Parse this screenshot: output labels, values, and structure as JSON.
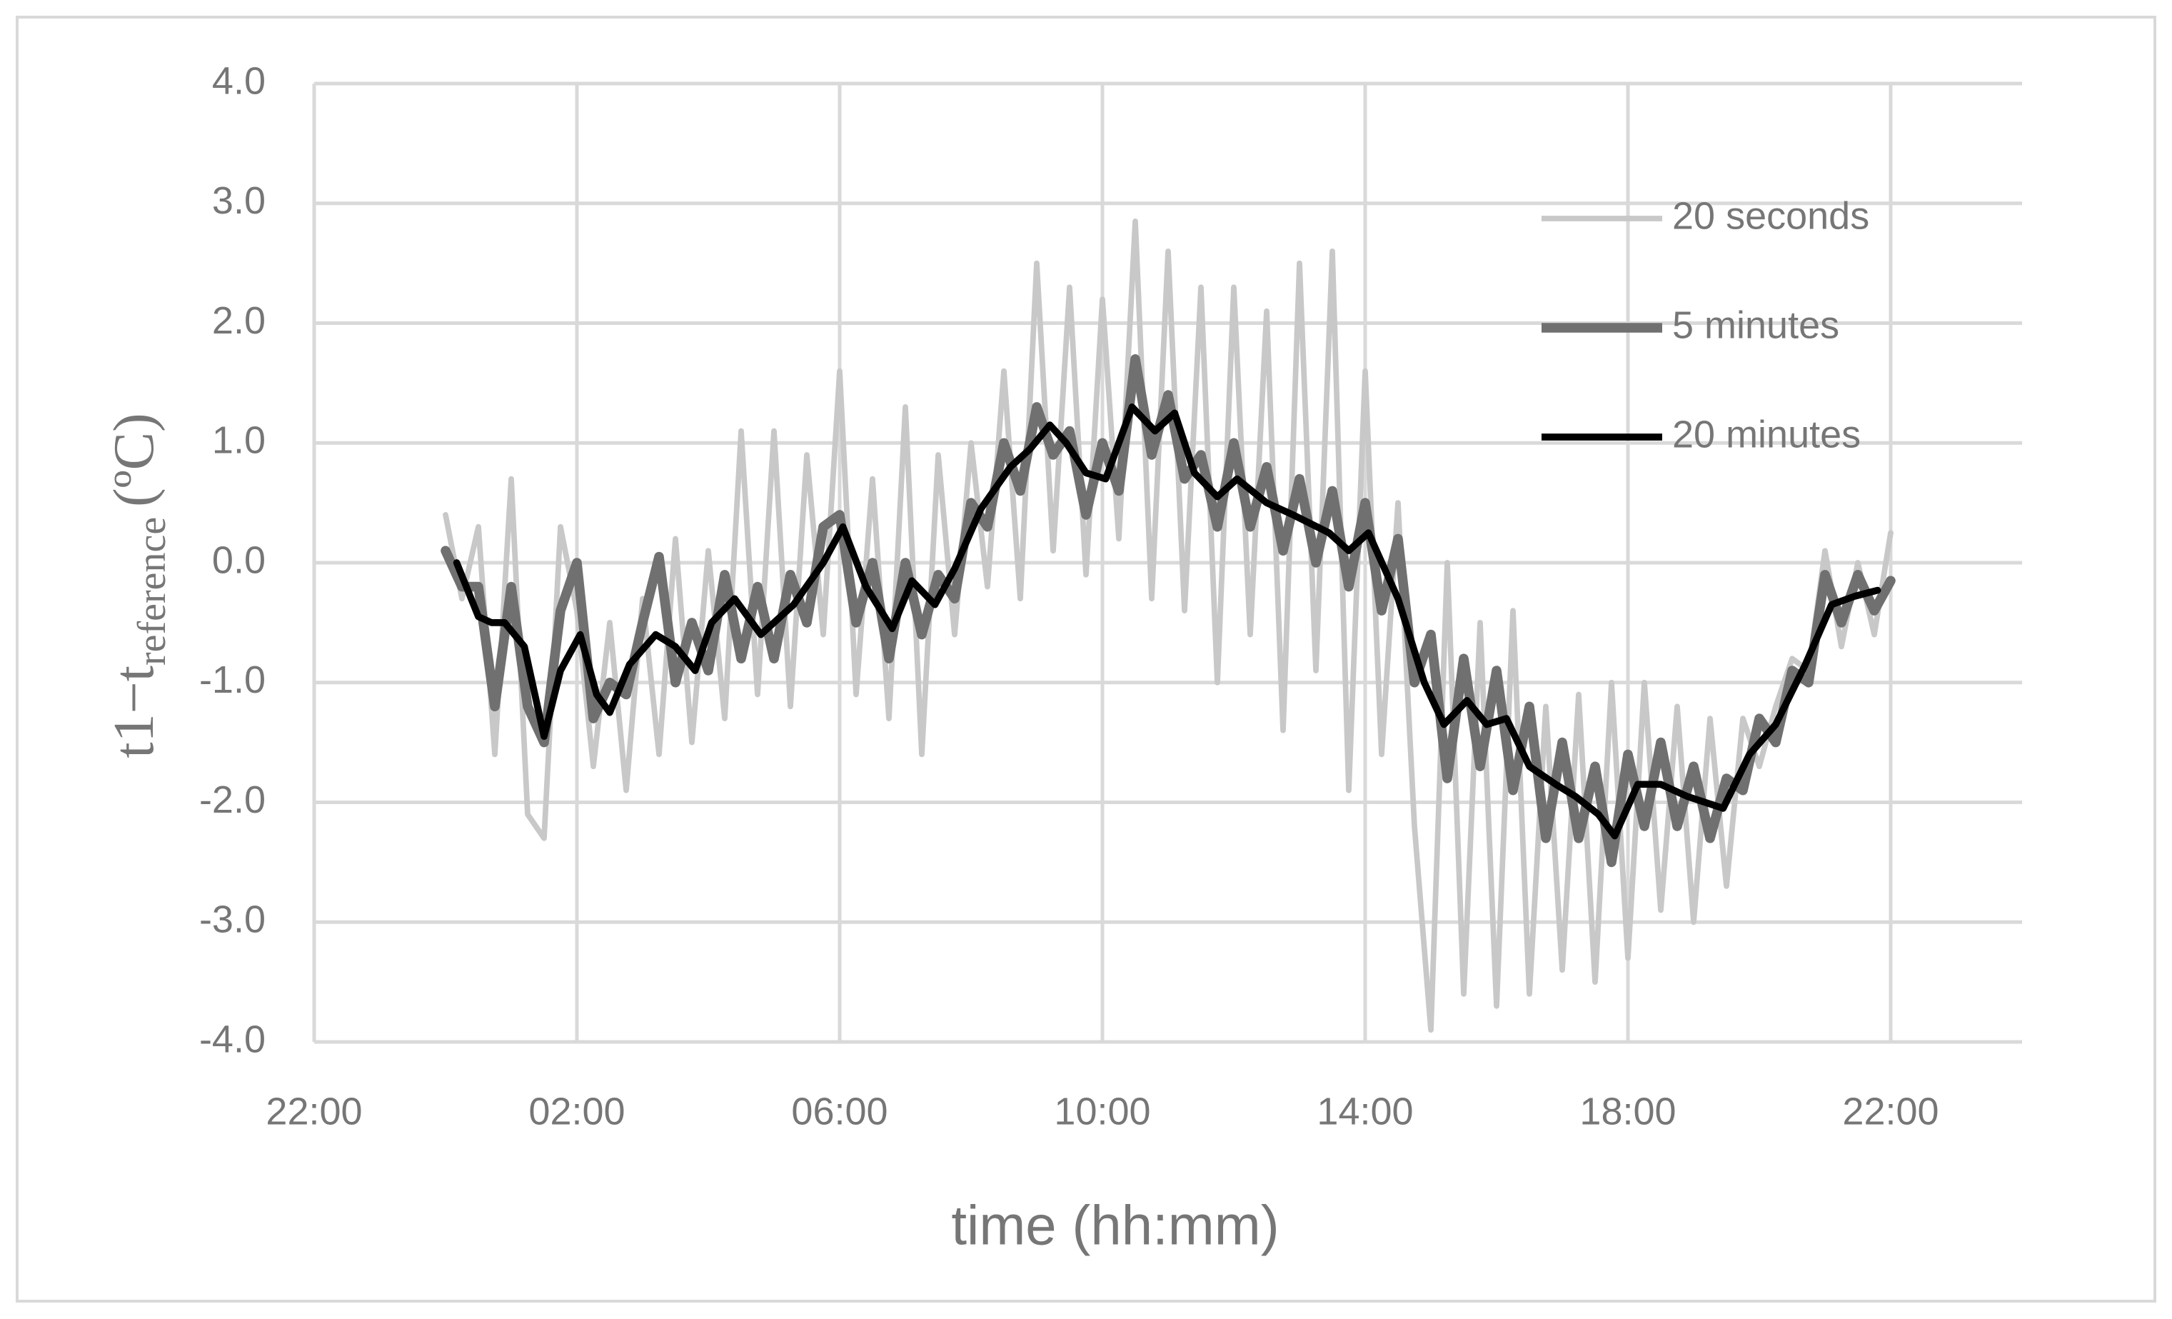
{
  "chart_data": {
    "type": "line",
    "xlabel": "time (hh:mm)",
    "ylabel": "t1−t",
    "ylabel_subscript": "reference",
    "ylabel_suffix": "(ºC)",
    "xlim": [
      -2,
      24
    ],
    "ylim": [
      -4,
      4
    ],
    "xticks": [
      {
        "value": -2,
        "label": "22:00"
      },
      {
        "value": 2,
        "label": "02:00"
      },
      {
        "value": 6,
        "label": "06:00"
      },
      {
        "value": 10,
        "label": "10:00"
      },
      {
        "value": 14,
        "label": "14:00"
      },
      {
        "value": 18,
        "label": "18:00"
      },
      {
        "value": 22,
        "label": "22:00"
      }
    ],
    "yticks": [
      {
        "value": 4,
        "label": "4.0"
      },
      {
        "value": 3,
        "label": "3.0"
      },
      {
        "value": 2,
        "label": "2.0"
      },
      {
        "value": 1,
        "label": "1.0"
      },
      {
        "value": 0,
        "label": "0.0"
      },
      {
        "value": -1,
        "label": "-1.0"
      },
      {
        "value": -2,
        "label": "-2.0"
      },
      {
        "value": -3,
        "label": "-3.0"
      },
      {
        "value": -4,
        "label": "-4.0"
      }
    ],
    "grid": true,
    "legend": "upper right",
    "x": [
      0,
      0.25,
      0.5,
      0.75,
      1,
      1.25,
      1.5,
      1.75,
      2,
      2.25,
      2.5,
      2.75,
      3,
      3.25,
      3.5,
      3.75,
      4,
      4.25,
      4.5,
      4.75,
      5,
      5.25,
      5.5,
      5.75,
      6,
      6.25,
      6.5,
      6.75,
      7,
      7.25,
      7.5,
      7.75,
      8,
      8.25,
      8.5,
      8.75,
      9,
      9.25,
      9.5,
      9.75,
      10,
      10.25,
      10.5,
      10.75,
      11,
      11.25,
      11.5,
      11.75,
      12,
      12.25,
      12.5,
      12.75,
      13,
      13.25,
      13.5,
      13.75,
      14,
      14.25,
      14.5,
      14.75,
      15,
      15.25,
      15.5,
      15.75,
      16,
      16.25,
      16.5,
      16.75,
      17,
      17.25,
      17.5,
      17.75,
      18,
      18.25,
      18.5,
      18.75,
      19,
      19.25,
      19.5,
      19.75,
      20,
      20.25,
      20.5,
      20.75,
      21,
      21.25,
      21.5,
      21.75,
      22
    ],
    "series": [
      {
        "name": "20 seconds",
        "color": "#c8c8c8",
        "width": 4,
        "values": [
          0.4,
          -0.3,
          0.3,
          -1.6,
          0.7,
          -2.1,
          -2.3,
          0.3,
          -0.4,
          -1.7,
          -0.5,
          -1.9,
          -0.3,
          -1.6,
          0.2,
          -1.5,
          0.1,
          -1.3,
          1.1,
          -1.1,
          1.1,
          -1.2,
          0.9,
          -0.6,
          1.6,
          -1.1,
          0.7,
          -1.3,
          1.3,
          -1.6,
          0.9,
          -0.6,
          1.0,
          -0.2,
          1.6,
          -0.3,
          2.5,
          0.1,
          2.3,
          -0.1,
          2.2,
          0.2,
          2.85,
          -0.3,
          2.6,
          -0.4,
          2.3,
          -1.0,
          2.3,
          -0.6,
          2.1,
          -1.4,
          2.5,
          -0.9,
          2.6,
          -1.9,
          1.6,
          -1.6,
          0.5,
          -2.2,
          -3.9,
          0.0,
          -3.6,
          -0.5,
          -3.7,
          -0.4,
          -3.6,
          -1.2,
          -3.4,
          -1.1,
          -3.5,
          -1.0,
          -3.3,
          -1.0,
          -2.9,
          -1.2,
          -3.0,
          -1.3,
          -2.7,
          -1.3,
          -1.7,
          -1.2,
          -0.8,
          -0.9,
          0.1,
          -0.7,
          0.0,
          -0.6,
          0.25
        ]
      },
      {
        "name": "5 minutes",
        "color": "#707070",
        "width": 7,
        "values": [
          0.1,
          -0.2,
          -0.2,
          -1.2,
          -0.2,
          -1.2,
          -1.5,
          -0.4,
          0.0,
          -1.3,
          -1.0,
          -1.1,
          -0.5,
          0.05,
          -1.0,
          -0.5,
          -0.9,
          -0.1,
          -0.8,
          -0.2,
          -0.8,
          -0.1,
          -0.5,
          0.3,
          0.4,
          -0.5,
          0.0,
          -0.8,
          0.0,
          -0.6,
          -0.1,
          -0.3,
          0.5,
          0.3,
          1.0,
          0.6,
          1.3,
          0.9,
          1.1,
          0.4,
          1.0,
          0.6,
          1.7,
          0.9,
          1.4,
          0.7,
          0.9,
          0.3,
          1.0,
          0.3,
          0.8,
          0.1,
          0.7,
          0.0,
          0.6,
          -0.2,
          0.5,
          -0.4,
          0.2,
          -1.0,
          -0.6,
          -1.8,
          -0.8,
          -1.7,
          -0.9,
          -1.9,
          -1.2,
          -2.3,
          -1.5,
          -2.3,
          -1.7,
          -2.5,
          -1.6,
          -2.2,
          -1.5,
          -2.2,
          -1.7,
          -2.3,
          -1.8,
          -1.9,
          -1.3,
          -1.5,
          -0.9,
          -1.0,
          -0.1,
          -0.5,
          -0.1,
          -0.4,
          -0.15
        ]
      },
      {
        "name": "20 minutes",
        "color": "#000000",
        "width": 5,
        "x": [
          0.17,
          0.5,
          0.7,
          0.9,
          1.2,
          1.5,
          1.75,
          2.05,
          2.3,
          2.5,
          2.8,
          3.2,
          3.5,
          3.8,
          4.05,
          4.4,
          4.8,
          5.3,
          5.75,
          6.05,
          6.4,
          6.8,
          7.1,
          7.45,
          7.75,
          8.15,
          8.6,
          8.9,
          9.2,
          9.45,
          9.75,
          10.05,
          10.45,
          10.8,
          11.1,
          11.4,
          11.75,
          12.05,
          12.5,
          12.9,
          13.45,
          13.75,
          14.05,
          14.5,
          14.9,
          15.2,
          15.55,
          15.85,
          16.15,
          16.5,
          16.9,
          17.2,
          17.55,
          17.8,
          18.15,
          18.5,
          18.9,
          19.45,
          19.85,
          20.25,
          20.7,
          21.1,
          21.45,
          21.8
        ],
        "values": [
          0.0,
          -0.45,
          -0.5,
          -0.5,
          -0.7,
          -1.45,
          -0.9,
          -0.6,
          -1.1,
          -1.25,
          -0.85,
          -0.6,
          -0.7,
          -0.9,
          -0.5,
          -0.3,
          -0.6,
          -0.35,
          0.0,
          0.3,
          -0.2,
          -0.55,
          -0.15,
          -0.35,
          -0.05,
          0.45,
          0.8,
          0.95,
          1.15,
          1.0,
          0.75,
          0.7,
          1.3,
          1.1,
          1.25,
          0.75,
          0.55,
          0.7,
          0.5,
          0.4,
          0.25,
          0.1,
          0.25,
          -0.3,
          -1.0,
          -1.35,
          -1.15,
          -1.35,
          -1.3,
          -1.7,
          -1.85,
          -1.95,
          -2.1,
          -2.28,
          -1.85,
          -1.85,
          -1.95,
          -2.05,
          -1.6,
          -1.35,
          -0.85,
          -0.35,
          -0.28,
          -0.23
        ]
      }
    ]
  }
}
